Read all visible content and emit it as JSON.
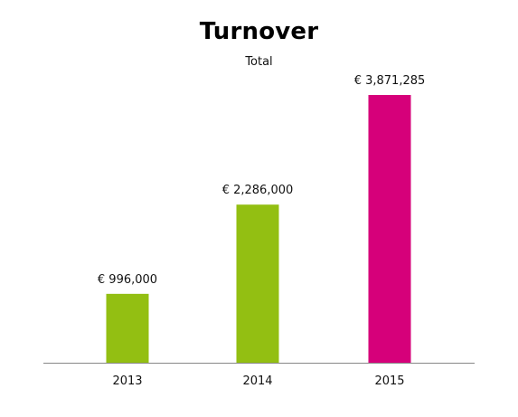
{
  "chart_data": {
    "type": "bar",
    "title": "Turnover",
    "subtitle": "Total",
    "xlabel": "",
    "ylabel": "",
    "categories": [
      "2013",
      "2014",
      "2015"
    ],
    "values": [
      996000,
      2286000,
      3871285
    ],
    "data_labels": [
      "€ 996,000",
      "€ 2,286,000",
      "€ 3,871,285"
    ],
    "bar_colors": [
      "#93bf12",
      "#93bf12",
      "#d6007a"
    ],
    "ylim": [
      0,
      3871285
    ],
    "grid": false,
    "legend": "none"
  }
}
